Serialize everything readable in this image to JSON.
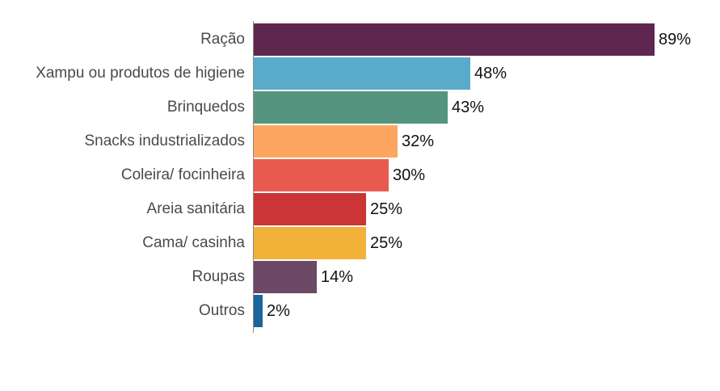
{
  "chart_data": {
    "type": "bar",
    "orientation": "horizontal",
    "title": "",
    "xlabel": "",
    "ylabel": "",
    "xlim": [
      0,
      100
    ],
    "grid": false,
    "legend": null,
    "categories": [
      "Ração",
      "Xampu ou produtos de higiene",
      "Brinquedos",
      "Snacks industrializados",
      "Coleira/ focinheira",
      "Areia sanitária",
      "Cama/ casinha",
      "Roupas",
      "Outros"
    ],
    "values": [
      89,
      48,
      43,
      32,
      30,
      25,
      25,
      14,
      2
    ],
    "value_labels": [
      "89%",
      "48%",
      "43%",
      "32%",
      "30%",
      "25%",
      "25%",
      "14%",
      "2%"
    ],
    "colors": [
      "#5e2750",
      "#5aabcb",
      "#55947f",
      "#fda662",
      "#e85a50",
      "#cc3535",
      "#f2b138",
      "#6b4863",
      "#1c649c"
    ]
  }
}
